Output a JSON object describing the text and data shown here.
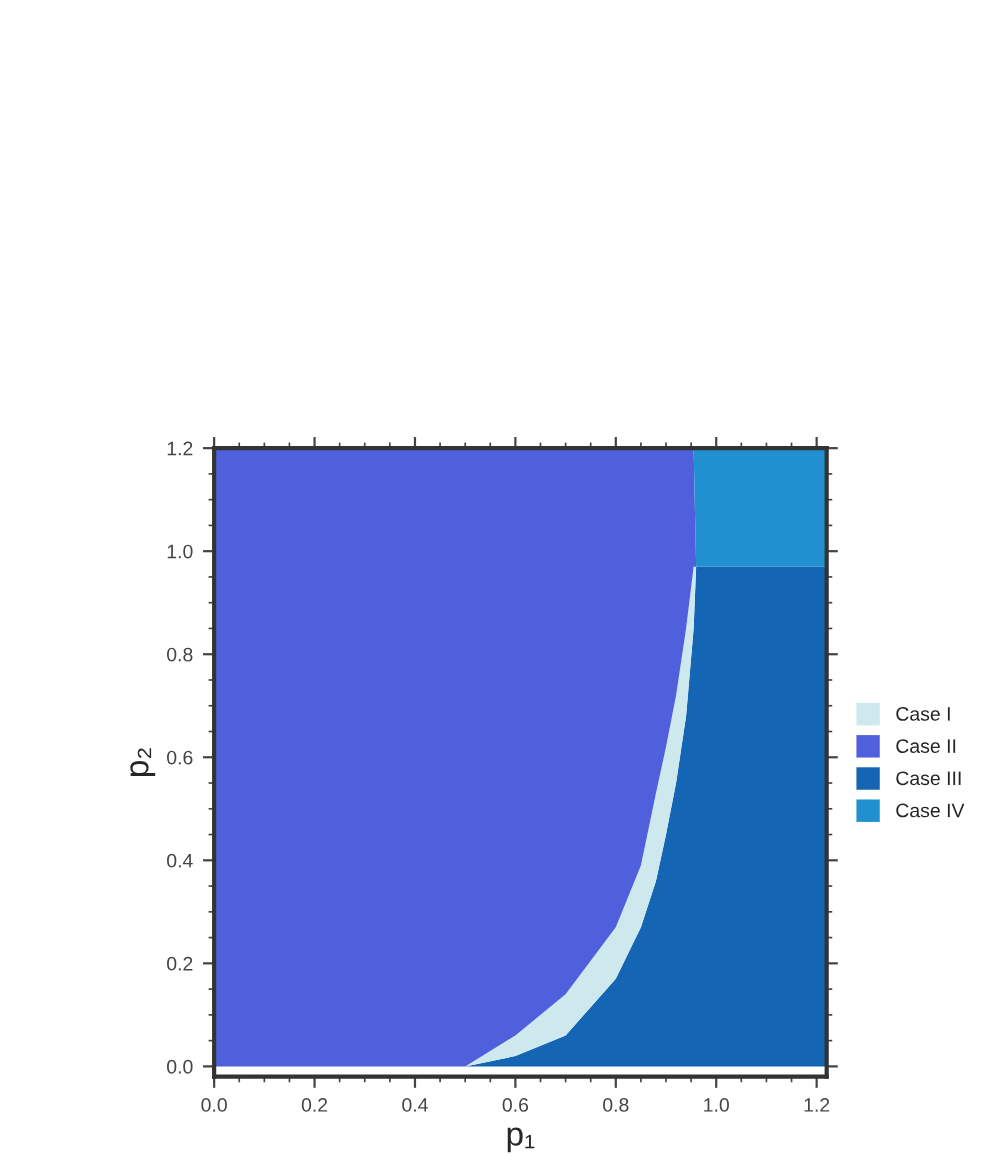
{
  "chart_data": {
    "type": "area",
    "stacked": true,
    "xlabel": "p₁",
    "ylabel": "p₂",
    "x": [
      0,
      0.5,
      0.6,
      0.7,
      0.8,
      0.85,
      0.88,
      0.9,
      0.92,
      0.94,
      0.955,
      0.96,
      1.22
    ],
    "series": [
      {
        "name": "Case III",
        "color": "#1565b5",
        "values": [
          0,
          0,
          0.02,
          0.06,
          0.17,
          0.27,
          0.36,
          0.45,
          0.55,
          0.68,
          0.85,
          0.97,
          0.97
        ]
      },
      {
        "name": "Case I",
        "color": "#cde9ee",
        "values": [
          null,
          0,
          0.04,
          0.08,
          0.1,
          0.12,
          0.17,
          0.17,
          0.17,
          0.17,
          0.12,
          0,
          null
        ]
      },
      {
        "name": "Case II",
        "color": "#5060dd",
        "values": [
          1.2,
          1.2,
          1.14,
          1.06,
          0.93,
          0.81,
          0.67,
          0.58,
          0.48,
          0.35,
          0.23,
          0,
          null
        ]
      },
      {
        "name": "Case IV",
        "color": "#2090d0",
        "values": [
          null,
          null,
          null,
          null,
          null,
          null,
          null,
          null,
          null,
          null,
          0,
          0.23,
          0.23
        ]
      }
    ],
    "xlim": [
      0,
      1.22
    ],
    "ylim": [
      -0.02,
      1.2
    ],
    "xticks": [
      {
        "value": 0,
        "label": "0.0"
      },
      0.2,
      0.4,
      0.6,
      0.8,
      {
        "value": 1,
        "label": "1.0"
      },
      1.2
    ],
    "yticks": [
      {
        "value": 0,
        "label": "0.0"
      },
      0.2,
      0.4,
      0.6,
      0.8,
      {
        "value": 1,
        "label": "1.0"
      },
      1.2
    ],
    "grid": false,
    "legend": "right"
  }
}
